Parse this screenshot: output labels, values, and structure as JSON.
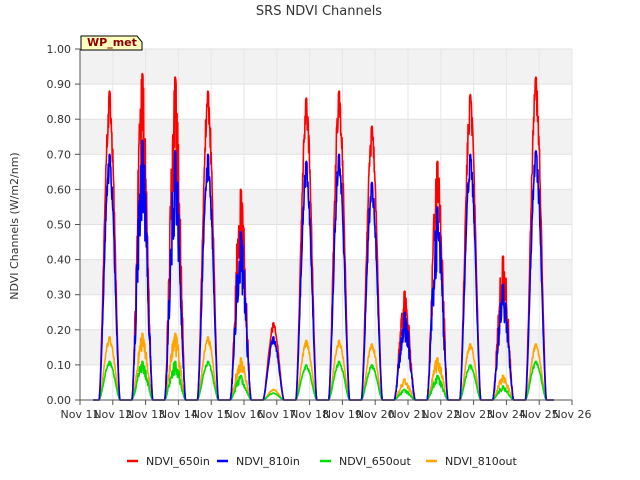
{
  "chart_data": {
    "type": "line",
    "title": "SRS NDVI Channels",
    "ylabel": "NDVI Channels (W/m2/nm)",
    "xlabel": "",
    "badge": "WP_met",
    "ylim": [
      0.0,
      1.0
    ],
    "yticks": [
      "0.00",
      "0.10",
      "0.20",
      "0.30",
      "0.40",
      "0.50",
      "0.60",
      "0.70",
      "0.80",
      "0.90",
      "1.00"
    ],
    "xlim": [
      11,
      26
    ],
    "xticks": [
      "Nov 11",
      "Nov 12",
      "Nov 13",
      "Nov 14",
      "Nov 15",
      "Nov 16",
      "Nov 17",
      "Nov 18",
      "Nov 19",
      "Nov 20",
      "Nov 21",
      "Nov 22",
      "Nov 23",
      "Nov 24",
      "Nov 25",
      "Nov 26"
    ],
    "data_start_day": 11.4,
    "data_end_day": 25.45,
    "day_centers": [
      11.9,
      12.9,
      13.9,
      14.9,
      15.9,
      16.9,
      17.9,
      18.9,
      19.9,
      20.9,
      21.9,
      22.9,
      23.9,
      24.9
    ],
    "series": [
      {
        "name": "NDVI_650in",
        "color": "#ff0000",
        "peaks": [
          0.88,
          0.93,
          0.92,
          0.88,
          0.6,
          0.22,
          0.86,
          0.88,
          0.78,
          0.31,
          0.68,
          0.87,
          0.41,
          0.92
        ]
      },
      {
        "name": "NDVI_810in",
        "color": "#0000ff",
        "peaks": [
          0.7,
          0.74,
          0.71,
          0.7,
          0.48,
          0.18,
          0.68,
          0.7,
          0.62,
          0.25,
          0.55,
          0.7,
          0.33,
          0.71
        ]
      },
      {
        "name": "NDVI_650out",
        "color": "#00dd00",
        "peaks": [
          0.11,
          0.11,
          0.11,
          0.11,
          0.07,
          0.02,
          0.1,
          0.11,
          0.1,
          0.03,
          0.07,
          0.1,
          0.04,
          0.11
        ]
      },
      {
        "name": "NDVI_810out",
        "color": "#ffa500",
        "peaks": [
          0.18,
          0.19,
          0.19,
          0.18,
          0.12,
          0.03,
          0.17,
          0.17,
          0.16,
          0.06,
          0.12,
          0.16,
          0.07,
          0.16
        ]
      }
    ]
  }
}
